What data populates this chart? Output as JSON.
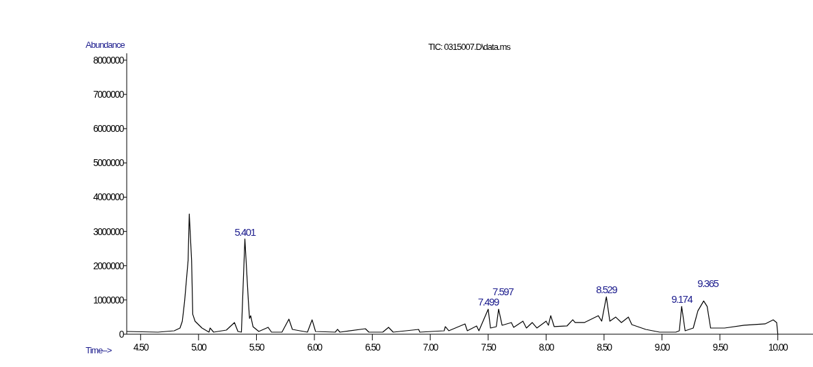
{
  "chart_data": {
    "type": "line",
    "title": "TIC: 0315007.D\\data.ms",
    "xlabel": "Time-->",
    "ylabel": "Abundance",
    "x": [
      4.38,
      4.65,
      4.79,
      4.84,
      4.86,
      4.88,
      4.91,
      4.92,
      4.94,
      4.95,
      4.97,
      5.03,
      5.09,
      5.1,
      5.13,
      5.24,
      5.31,
      5.34,
      5.37,
      5.4,
      5.43,
      5.44,
      5.45,
      5.47,
      5.52,
      5.6,
      5.63,
      5.72,
      5.78,
      5.81,
      5.94,
      5.98,
      6.01,
      6.18,
      6.2,
      6.22,
      6.44,
      6.47,
      6.59,
      6.64,
      6.68,
      6.9,
      6.91,
      7.12,
      7.13,
      7.16,
      7.3,
      7.32,
      7.4,
      7.42,
      7.5,
      7.52,
      7.57,
      7.59,
      7.62,
      7.7,
      7.72,
      7.8,
      7.83,
      7.88,
      7.92,
      8.0,
      8.02,
      8.04,
      8.07,
      8.18,
      8.23,
      8.25,
      8.33,
      8.45,
      8.48,
      8.52,
      8.55,
      8.6,
      8.65,
      8.71,
      8.74,
      8.86,
      8.98,
      9.12,
      9.15,
      9.17,
      9.2,
      9.27,
      9.31,
      9.36,
      9.39,
      9.42,
      9.54,
      9.71,
      9.89,
      9.96,
      9.99,
      10.0
    ],
    "series": [
      {
        "color": "#000000",
        "values": [
          80000,
          60000,
          100000,
          180000,
          380000,
          970000,
          2160000,
          3510000,
          2160000,
          580000,
          380000,
          180000,
          60000,
          180000,
          60000,
          120000,
          340000,
          80000,
          60000,
          2780000,
          970000,
          460000,
          540000,
          220000,
          80000,
          200000,
          60000,
          60000,
          440000,
          140000,
          60000,
          420000,
          80000,
          60000,
          140000,
          60000,
          160000,
          60000,
          60000,
          200000,
          60000,
          140000,
          60000,
          100000,
          220000,
          100000,
          300000,
          100000,
          240000,
          100000,
          730000,
          180000,
          220000,
          730000,
          260000,
          340000,
          200000,
          380000,
          180000,
          340000,
          180000,
          380000,
          260000,
          540000,
          220000,
          240000,
          420000,
          340000,
          340000,
          540000,
          380000,
          1090000,
          380000,
          500000,
          340000,
          500000,
          280000,
          140000,
          60000,
          60000,
          100000,
          810000,
          100000,
          180000,
          680000,
          970000,
          810000,
          180000,
          180000,
          260000,
          300000,
          420000,
          340000,
          0
        ]
      }
    ],
    "xlim": [
      4.38,
      10.28
    ],
    "ylim": [
      0,
      8200000
    ],
    "xticks": [
      {
        "value": 4.5,
        "label": "4.50"
      },
      {
        "value": 5,
        "label": "5.00"
      },
      {
        "value": 5.5,
        "label": "5.50"
      },
      {
        "value": 6,
        "label": "6.00"
      },
      {
        "value": 6.5,
        "label": "6.50"
      },
      {
        "value": 7,
        "label": "7.00"
      },
      {
        "value": 7.5,
        "label": "7.50"
      },
      {
        "value": 8,
        "label": "8.00"
      },
      {
        "value": 8.5,
        "label": "8.50"
      },
      {
        "value": 9,
        "label": "9.00"
      },
      {
        "value": 9.5,
        "label": "9.50"
      },
      {
        "value": 10,
        "label": "10.00"
      }
    ],
    "yticks": [
      0,
      1000000,
      2000000,
      3000000,
      4000000,
      5000000,
      6000000,
      7000000,
      8000000
    ],
    "annotations": [
      {
        "text": "5.401",
        "x": 5.4,
        "y": 2780000
      },
      {
        "text": "7.499",
        "x": 7.5,
        "y": 730000
      },
      {
        "text": "7.597",
        "x": 7.59,
        "y": 730000
      },
      {
        "text": "8.529",
        "x": 8.52,
        "y": 1090000
      },
      {
        "text": "9.174",
        "x": 9.17,
        "y": 810000
      },
      {
        "text": "9.365",
        "x": 9.36,
        "y": 970000
      }
    ]
  }
}
